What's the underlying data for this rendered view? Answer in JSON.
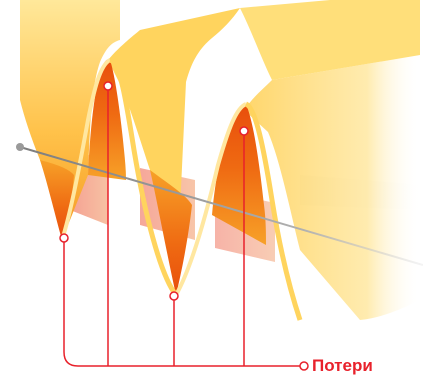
{
  "label": {
    "text": "Потери"
  },
  "colors": {
    "accent": "#e8212b",
    "ribbon_light": "#ffd66b",
    "ribbon_mid": "#f7a128",
    "ribbon_dark": "#ef6a12",
    "axis": "#9a9a9a",
    "background": "#ffffff"
  }
}
